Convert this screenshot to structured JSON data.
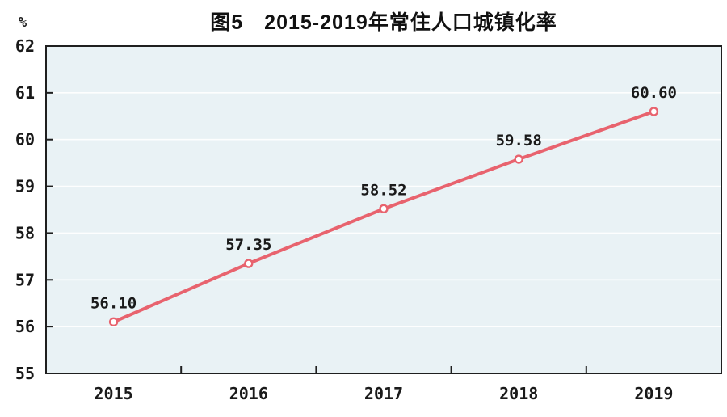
{
  "chart_data": {
    "type": "line",
    "title": "图5　2015-2019年常住人口城镇化率",
    "unit_label": "%",
    "categories": [
      "2015",
      "2016",
      "2017",
      "2018",
      "2019"
    ],
    "series": [
      {
        "name": "常住人口城镇化率",
        "values": [
          56.1,
          57.35,
          58.52,
          59.58,
          60.6
        ],
        "data_labels": [
          "56.10",
          "57.35",
          "58.52",
          "59.58",
          "60.60"
        ]
      }
    ],
    "xlabel": "",
    "ylabel": "%",
    "ylim": [
      55,
      62
    ],
    "yticks": [
      55,
      56,
      57,
      58,
      59,
      60,
      61,
      62
    ],
    "grid": "horizontal",
    "legend_position": "none",
    "colors": {
      "line": "#e8636e",
      "marker_fill": "#ffffff",
      "plot_background": "#e9f2f5",
      "gridline": "#fdfefe",
      "axis": "#1f1f1f",
      "text": "#1a1a1a"
    }
  }
}
